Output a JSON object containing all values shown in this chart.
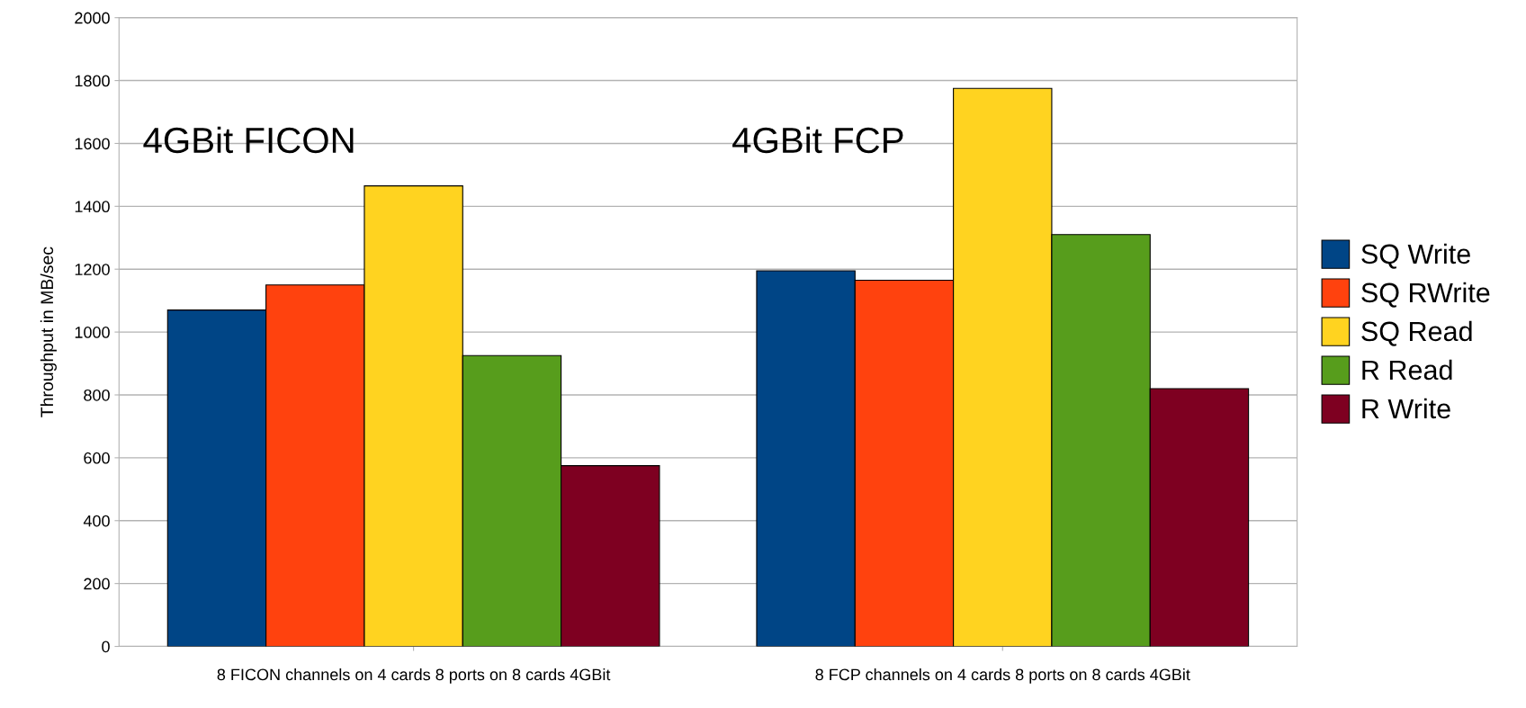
{
  "chart_data": {
    "type": "bar",
    "ylabel": "Throughput in MB/sec",
    "categories": [
      "8 FICON channels on 4 cards 8 ports on 8 cards 4GBit",
      "8 FCP channels on 4 cards 8 ports on 8 cards 4GBit"
    ],
    "series": [
      {
        "name": "SQ Write",
        "color": "#004586",
        "values": [
          1070,
          1195
        ]
      },
      {
        "name": "SQ RWrite",
        "color": "#ff420e",
        "values": [
          1150,
          1165
        ]
      },
      {
        "name": "SQ Read",
        "color": "#ffd320",
        "values": [
          1465,
          1775
        ]
      },
      {
        "name": "R Read",
        "color": "#579d1c",
        "values": [
          925,
          1310
        ]
      },
      {
        "name": "R Write",
        "color": "#7e0021",
        "values": [
          575,
          820
        ]
      }
    ],
    "annotations": [
      "4GBit FICON",
      "4GBit FCP"
    ],
    "ylim": [
      0,
      2000
    ],
    "yticks": [
      0,
      200,
      400,
      600,
      800,
      1000,
      1200,
      1400,
      1600,
      1800,
      2000
    ],
    "grid": "y",
    "legend": "right"
  }
}
